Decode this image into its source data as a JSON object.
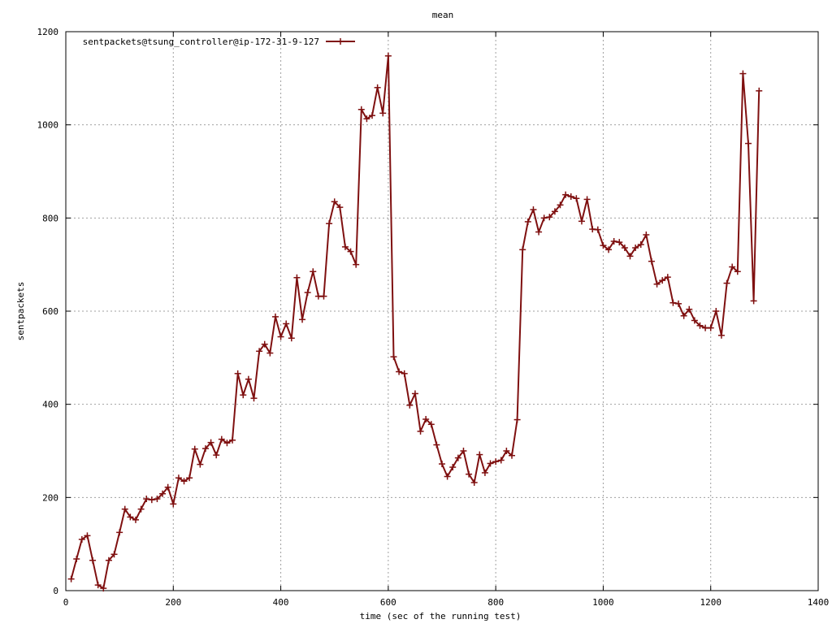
{
  "chart_data": {
    "type": "line",
    "title": "mean",
    "xlabel": "time (sec of the running test)",
    "ylabel": "sentpackets",
    "xlim": [
      0,
      1400
    ],
    "ylim": [
      0,
      1200
    ],
    "x_ticks": [
      "0",
      "200",
      "400",
      "600",
      "800",
      "1000",
      "1200",
      "1400"
    ],
    "y_ticks": [
      "0",
      "200",
      "400",
      "600",
      "800",
      "1000",
      "1200"
    ],
    "grid": true,
    "legend_position": "top-left",
    "series": [
      {
        "name": "sentpackets@tsung_controller@ip-172-31-9-127",
        "color": "#7f1010",
        "marker": "plus",
        "x": [
          10,
          20,
          30,
          40,
          50,
          60,
          70,
          80,
          90,
          100,
          110,
          120,
          130,
          140,
          150,
          160,
          170,
          180,
          190,
          200,
          210,
          220,
          230,
          240,
          250,
          260,
          270,
          280,
          290,
          300,
          310,
          320,
          330,
          340,
          350,
          360,
          370,
          380,
          390,
          400,
          410,
          420,
          430,
          440,
          450,
          460,
          470,
          480,
          490,
          500,
          510,
          520,
          530,
          540,
          550,
          560,
          570,
          580,
          590,
          600,
          610,
          620,
          630,
          640,
          650,
          660,
          670,
          680,
          690,
          700,
          710,
          720,
          730,
          740,
          750,
          760,
          770,
          780,
          790,
          800,
          810,
          820,
          830,
          840,
          850,
          860,
          870,
          880,
          890,
          900,
          910,
          920,
          930,
          940,
          950,
          960,
          970,
          980,
          990,
          1000,
          1010,
          1020,
          1030,
          1040,
          1050,
          1060,
          1070,
          1080,
          1090,
          1100,
          1110,
          1120,
          1130,
          1140,
          1150,
          1160,
          1170,
          1180,
          1190,
          1200,
          1210,
          1220,
          1230,
          1240,
          1250,
          1260,
          1270,
          1280,
          1290
        ],
        "y": [
          25,
          68,
          110,
          118,
          65,
          12,
          5,
          65,
          78,
          125,
          175,
          158,
          152,
          175,
          197,
          195,
          197,
          208,
          222,
          186,
          242,
          235,
          242,
          304,
          271,
          305,
          318,
          291,
          325,
          317,
          323,
          466,
          420,
          454,
          413,
          514,
          529,
          510,
          588,
          545,
          573,
          542,
          672,
          582,
          640,
          685,
          632,
          632,
          788,
          835,
          823,
          738,
          728,
          700,
          1033,
          1013,
          1020,
          1080,
          1025,
          1148,
          502,
          470,
          466,
          398,
          423,
          342,
          368,
          357,
          313,
          272,
          245,
          265,
          285,
          300,
          250,
          232,
          292,
          253,
          273,
          277,
          280,
          300,
          290,
          367,
          732,
          792,
          818,
          770,
          800,
          802,
          814,
          828,
          850,
          846,
          842,
          793,
          840,
          776,
          775,
          741,
          732,
          750,
          748,
          736,
          718,
          736,
          743,
          764,
          707,
          658,
          666,
          673,
          618,
          616,
          590,
          604,
          580,
          569,
          564,
          564,
          600,
          548,
          660,
          695,
          685,
          1110,
          960,
          622,
          1073
        ]
      }
    ]
  }
}
